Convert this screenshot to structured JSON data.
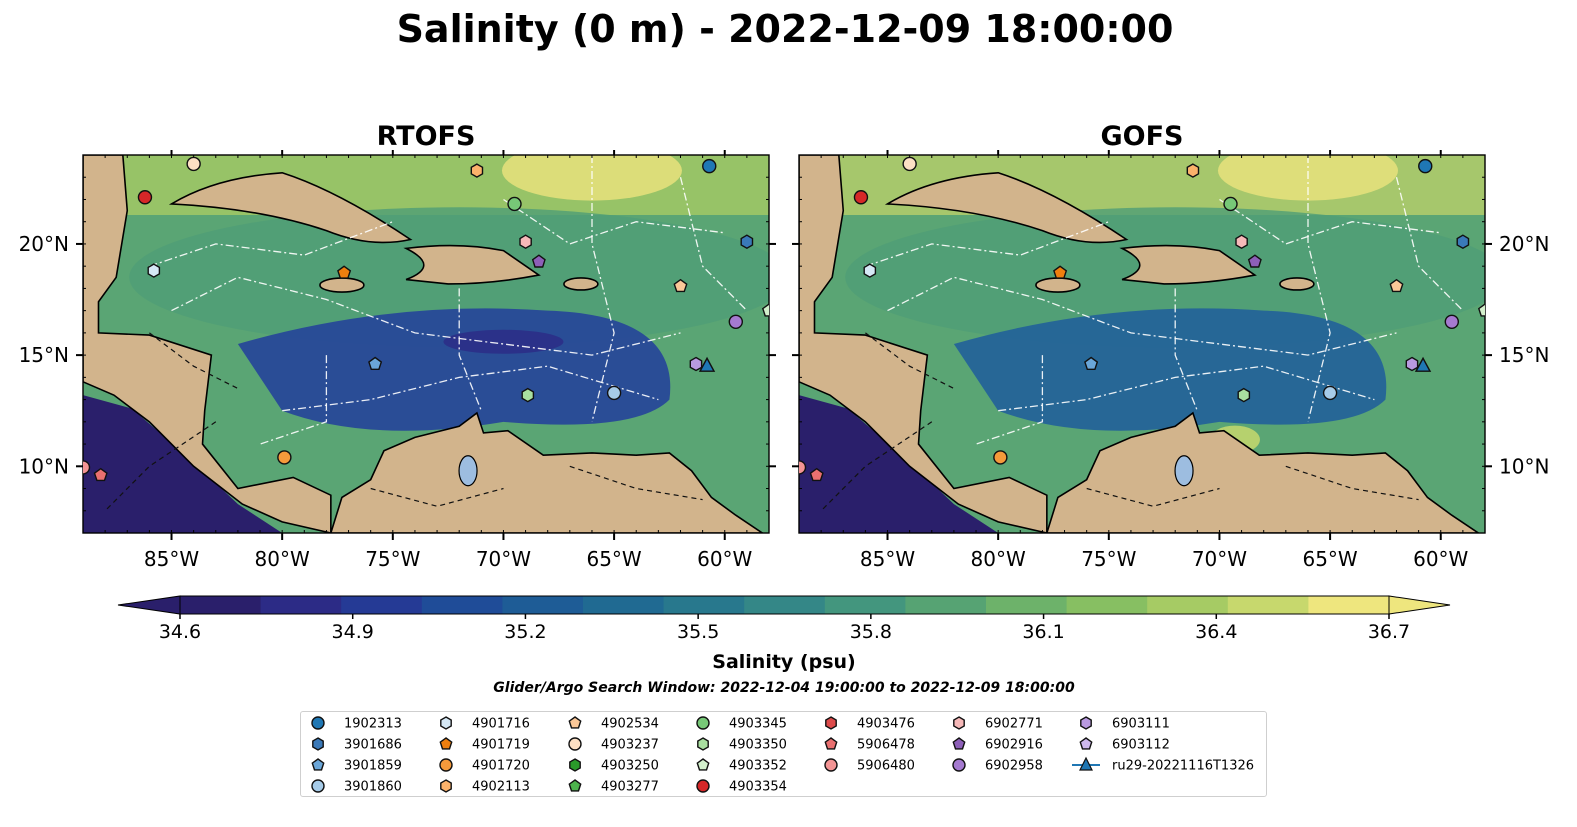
{
  "figure": {
    "title": "Salinity (0 m) - 2022-12-09 18:00:00",
    "subtitle": "Glider/Argo Search Window: 2022-12-04 19:00:00 to 2022-12-09 18:00:00"
  },
  "chart_data": {
    "type": "heatmap",
    "panels": [
      {
        "title": "RTOFS"
      },
      {
        "title": "GOFS"
      }
    ],
    "x_ticks": [
      "85°W",
      "80°W",
      "75°W",
      "70°W",
      "65°W",
      "60°W"
    ],
    "x_tick_values": [
      -85,
      -80,
      -75,
      -70,
      -65,
      -60
    ],
    "y_ticks": [
      "20°N",
      "15°N",
      "10°N"
    ],
    "y_tick_values": [
      20,
      15,
      10
    ],
    "xlim": [
      -89,
      -58
    ],
    "ylim": [
      7,
      24
    ],
    "colorbar": {
      "label": "Salinity (psu)",
      "min": 34.6,
      "max": 36.7,
      "ticks": [
        "34.6",
        "34.9",
        "35.2",
        "35.5",
        "35.8",
        "36.1",
        "36.4",
        "36.7"
      ],
      "colors": [
        "#2a1f6b",
        "#2c2b86",
        "#253a95",
        "#1f4c98",
        "#1e5c96",
        "#206a92",
        "#28788d",
        "#348787",
        "#43967e",
        "#56a373",
        "#6db26a",
        "#87bf62",
        "#a6cb64",
        "#c7d86d",
        "#eee67e"
      ]
    },
    "land_color": "#d2b48c",
    "deep_color": "#2a1f6b",
    "legend": {
      "columns": [
        [
          {
            "label": "1902313",
            "marker": "circle",
            "color": "#1f77b4"
          },
          {
            "label": "3901686",
            "marker": "hexagon",
            "color": "#3a79b8"
          },
          {
            "label": "3901859",
            "marker": "pentagon",
            "color": "#6aa6d8"
          },
          {
            "label": "3901860",
            "marker": "circle",
            "color": "#a6cbe8"
          }
        ],
        [
          {
            "label": "4901716",
            "marker": "hexagon",
            "color": "#d5e8f5"
          },
          {
            "label": "4901719",
            "marker": "pentagon",
            "color": "#f07f0e"
          },
          {
            "label": "4901720",
            "marker": "circle",
            "color": "#f59a3b"
          },
          {
            "label": "4902113",
            "marker": "hexagon",
            "color": "#fbb26b"
          }
        ],
        [
          {
            "label": "4902534",
            "marker": "pentagon",
            "color": "#fcc898"
          },
          {
            "label": "4903237",
            "marker": "circle",
            "color": "#fde0c4"
          },
          {
            "label": "4903250",
            "marker": "hexagon",
            "color": "#2a9a2a"
          },
          {
            "label": "4903277",
            "marker": "pentagon",
            "color": "#4db34d"
          }
        ],
        [
          {
            "label": "4903345",
            "marker": "circle",
            "color": "#77c877"
          },
          {
            "label": "4903350",
            "marker": "hexagon",
            "color": "#a9dfa0"
          },
          {
            "label": "4903352",
            "marker": "pentagon",
            "color": "#d3f0cc"
          },
          {
            "label": "4903354",
            "marker": "circle",
            "color": "#d62728"
          }
        ],
        [
          {
            "label": "4903476",
            "marker": "hexagon",
            "color": "#dd4b4b"
          },
          {
            "label": "5906478",
            "marker": "pentagon",
            "color": "#ea7070"
          },
          {
            "label": "5906480",
            "marker": "circle",
            "color": "#f39494"
          }
        ],
        [
          {
            "label": "6902771",
            "marker": "hexagon",
            "color": "#f7b9b9"
          },
          {
            "label": "6902916",
            "marker": "pentagon",
            "color": "#8d5fb8"
          },
          {
            "label": "6902958",
            "marker": "circle",
            "color": "#a57ad0"
          }
        ],
        [
          {
            "label": "6903111",
            "marker": "hexagon",
            "color": "#b99ae0"
          },
          {
            "label": "6903112",
            "marker": "pentagon",
            "color": "#cdb8ec"
          },
          {
            "label": "ru29-20221116T1326",
            "marker": "triangle-line",
            "color": "#1f77b4"
          }
        ]
      ]
    },
    "markers": [
      {
        "lon": -86.2,
        "lat": 22.1,
        "shape": "circle",
        "color": "#d62728"
      },
      {
        "lon": -84.0,
        "lat": 23.6,
        "shape": "circle",
        "color": "#fde0c4"
      },
      {
        "lon": -71.2,
        "lat": 23.3,
        "shape": "hexagon",
        "color": "#fbb26b"
      },
      {
        "lon": -60.7,
        "lat": 23.5,
        "shape": "circle",
        "color": "#1f77b4"
      },
      {
        "lon": -69.5,
        "lat": 21.8,
        "shape": "circle",
        "color": "#77c877"
      },
      {
        "lon": -59.0,
        "lat": 20.1,
        "shape": "hexagon",
        "color": "#3a79b8"
      },
      {
        "lon": -69.0,
        "lat": 20.1,
        "shape": "hexagon",
        "color": "#f7b9b9"
      },
      {
        "lon": -68.4,
        "lat": 19.2,
        "shape": "pentagon",
        "color": "#8d5fb8"
      },
      {
        "lon": -85.8,
        "lat": 18.8,
        "shape": "hexagon",
        "color": "#d5e8f5"
      },
      {
        "lon": -77.2,
        "lat": 18.7,
        "shape": "pentagon",
        "color": "#f07f0e"
      },
      {
        "lon": -62.0,
        "lat": 18.1,
        "shape": "pentagon",
        "color": "#fcc898"
      },
      {
        "lon": -59.5,
        "lat": 16.5,
        "shape": "circle",
        "color": "#a57ad0"
      },
      {
        "lon": -58.0,
        "lat": 17.0,
        "shape": "pentagon",
        "color": "#d3f0cc"
      },
      {
        "lon": -75.8,
        "lat": 14.6,
        "shape": "pentagon",
        "color": "#6aa6d8"
      },
      {
        "lon": -61.3,
        "lat": 14.6,
        "shape": "hexagon",
        "color": "#b99ae0"
      },
      {
        "lon": -65.0,
        "lat": 13.3,
        "shape": "circle",
        "color": "#a6cbe8"
      },
      {
        "lon": -68.9,
        "lat": 13.2,
        "shape": "hexagon",
        "color": "#a9dfa0"
      },
      {
        "lon": -79.9,
        "lat": 10.4,
        "shape": "circle",
        "color": "#f59a3b"
      },
      {
        "lon": -89.0,
        "lat": 9.95,
        "shape": "circle",
        "color": "#f39494"
      },
      {
        "lon": -88.2,
        "lat": 9.6,
        "shape": "pentagon",
        "color": "#ea7070"
      },
      {
        "lon": -60.8,
        "lat": 14.5,
        "shape": "triangle",
        "color": "#1f77b4"
      }
    ]
  }
}
